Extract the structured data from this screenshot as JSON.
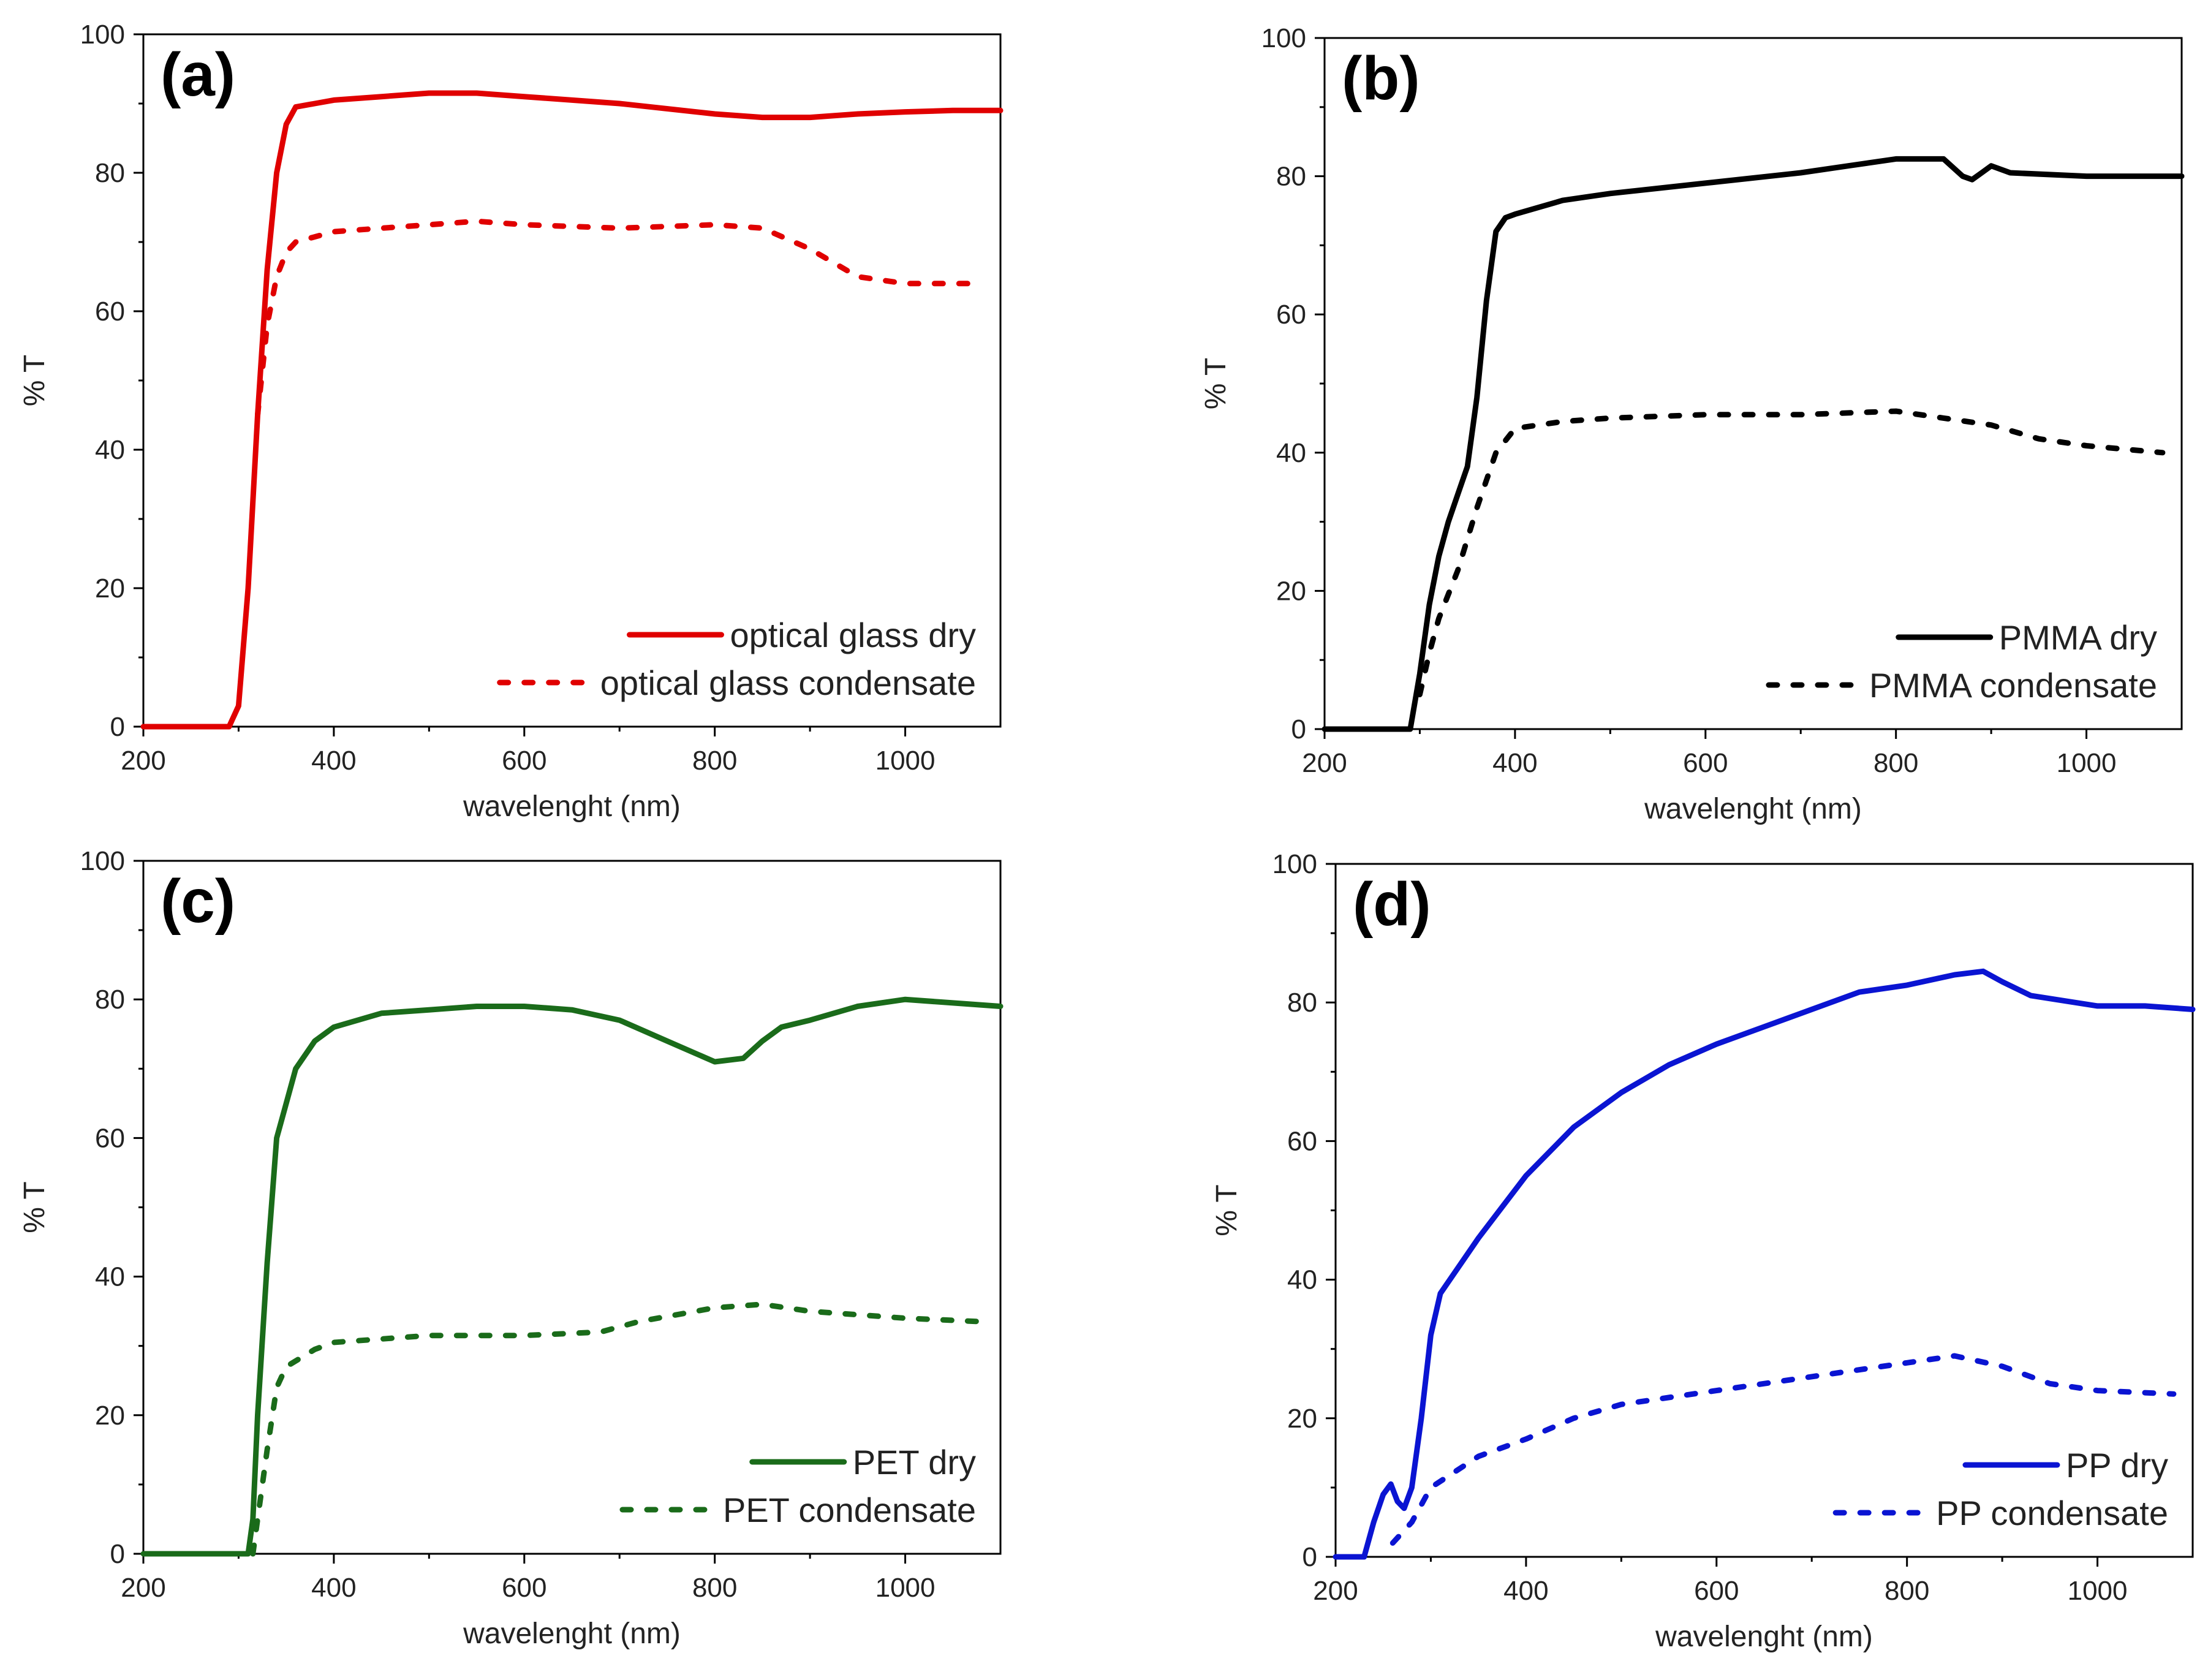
{
  "chart_data": [
    {
      "type": "line",
      "panel_label": "(a)",
      "xlabel": "wavelenght (nm)",
      "ylabel": "% T",
      "xlim": [
        200,
        1100
      ],
      "ylim": [
        0,
        100
      ],
      "xticks": [
        200,
        400,
        600,
        800,
        1000
      ],
      "yticks": [
        0,
        20,
        40,
        60,
        80,
        100
      ],
      "legend_position": "bottom-right",
      "series": [
        {
          "name": "optical glass dry",
          "style": "solid",
          "color": "#e00000",
          "points": [
            [
              200,
              0
            ],
            [
              290,
              0
            ],
            [
              300,
              3
            ],
            [
              310,
              20
            ],
            [
              320,
              45
            ],
            [
              330,
              66
            ],
            [
              340,
              80
            ],
            [
              350,
              87
            ],
            [
              360,
              89.5
            ],
            [
              380,
              90
            ],
            [
              400,
              90.5
            ],
            [
              450,
              91
            ],
            [
              500,
              91.5
            ],
            [
              550,
              91.5
            ],
            [
              600,
              91
            ],
            [
              700,
              90
            ],
            [
              800,
              88.5
            ],
            [
              850,
              88
            ],
            [
              900,
              88
            ],
            [
              950,
              88.5
            ],
            [
              1000,
              88.8
            ],
            [
              1050,
              89
            ],
            [
              1100,
              89
            ]
          ]
        },
        {
          "name": "optical glass condensate",
          "style": "dotted",
          "color": "#e00000",
          "points": [
            [
              320,
              45
            ],
            [
              330,
              58
            ],
            [
              340,
              65
            ],
            [
              350,
              68.5
            ],
            [
              360,
              70
            ],
            [
              400,
              71.5
            ],
            [
              500,
              72.5
            ],
            [
              550,
              73
            ],
            [
              600,
              72.5
            ],
            [
              700,
              72
            ],
            [
              800,
              72.5
            ],
            [
              850,
              72
            ],
            [
              900,
              69
            ],
            [
              950,
              65
            ],
            [
              1000,
              64
            ],
            [
              1070,
              64
            ]
          ]
        }
      ]
    },
    {
      "type": "line",
      "panel_label": "(b)",
      "xlabel": "wavelenght (nm)",
      "ylabel": "% T",
      "xlim": [
        200,
        1100
      ],
      "ylim": [
        0,
        100
      ],
      "xticks": [
        200,
        400,
        600,
        800,
        1000
      ],
      "yticks": [
        0,
        20,
        40,
        60,
        80,
        100
      ],
      "legend_position": "bottom-right",
      "series": [
        {
          "name": "PMMA dry",
          "style": "solid",
          "color": "#000000",
          "points": [
            [
              200,
              0
            ],
            [
              280,
              0
            ],
            [
              290,
              0
            ],
            [
              300,
              8
            ],
            [
              310,
              18
            ],
            [
              320,
              25
            ],
            [
              330,
              30
            ],
            [
              340,
              34
            ],
            [
              350,
              38
            ],
            [
              360,
              48
            ],
            [
              370,
              62
            ],
            [
              380,
              72
            ],
            [
              390,
              74
            ],
            [
              400,
              74.5
            ],
            [
              450,
              76.5
            ],
            [
              500,
              77.5
            ],
            [
              600,
              79
            ],
            [
              700,
              80.5
            ],
            [
              750,
              81.5
            ],
            [
              800,
              82.5
            ],
            [
              850,
              82.5
            ],
            [
              870,
              80
            ],
            [
              880,
              79.5
            ],
            [
              890,
              80.5
            ],
            [
              900,
              81.5
            ],
            [
              920,
              80.5
            ],
            [
              1000,
              80
            ],
            [
              1050,
              80
            ],
            [
              1080,
              80
            ],
            [
              1100,
              80
            ]
          ]
        },
        {
          "name": "PMMA condensate",
          "style": "dotted",
          "color": "#000000",
          "points": [
            [
              300,
              5
            ],
            [
              310,
              11
            ],
            [
              320,
              16
            ],
            [
              340,
              23
            ],
            [
              360,
              32
            ],
            [
              380,
              40
            ],
            [
              400,
              43.5
            ],
            [
              450,
              44.5
            ],
            [
              500,
              45
            ],
            [
              600,
              45.5
            ],
            [
              700,
              45.5
            ],
            [
              800,
              46
            ],
            [
              850,
              45
            ],
            [
              900,
              44
            ],
            [
              950,
              42
            ],
            [
              1000,
              41
            ],
            [
              1080,
              40
            ]
          ]
        }
      ]
    },
    {
      "type": "line",
      "panel_label": "(c)",
      "xlabel": "wavelenght (nm)",
      "ylabel": "% T",
      "xlim": [
        200,
        1100
      ],
      "ylim": [
        0,
        100
      ],
      "xticks": [
        200,
        400,
        600,
        800,
        1000
      ],
      "yticks": [
        0,
        20,
        40,
        60,
        80,
        100
      ],
      "legend_position": "bottom-right",
      "series": [
        {
          "name": "PET dry",
          "style": "solid",
          "color": "#1a6b1a",
          "points": [
            [
              200,
              0
            ],
            [
              300,
              0
            ],
            [
              310,
              0
            ],
            [
              315,
              5
            ],
            [
              320,
              20
            ],
            [
              330,
              42
            ],
            [
              340,
              60
            ],
            [
              350,
              65
            ],
            [
              360,
              70
            ],
            [
              380,
              74
            ],
            [
              400,
              76
            ],
            [
              450,
              78
            ],
            [
              500,
              78.5
            ],
            [
              550,
              79
            ],
            [
              600,
              79
            ],
            [
              650,
              78.5
            ],
            [
              700,
              77
            ],
            [
              750,
              74
            ],
            [
              800,
              71
            ],
            [
              830,
              71.5
            ],
            [
              850,
              74
            ],
            [
              870,
              76
            ],
            [
              900,
              77
            ],
            [
              950,
              79
            ],
            [
              1000,
              80
            ],
            [
              1050,
              79.5
            ],
            [
              1100,
              79
            ]
          ]
        },
        {
          "name": "PET condensate",
          "style": "dotted",
          "color": "#1a6b1a",
          "points": [
            [
              315,
              0
            ],
            [
              320,
              5
            ],
            [
              330,
              15
            ],
            [
              340,
              24
            ],
            [
              350,
              27
            ],
            [
              380,
              29.5
            ],
            [
              400,
              30.5
            ],
            [
              450,
              31
            ],
            [
              500,
              31.5
            ],
            [
              600,
              31.5
            ],
            [
              680,
              32
            ],
            [
              720,
              33.5
            ],
            [
              800,
              35.5
            ],
            [
              850,
              36
            ],
            [
              900,
              35
            ],
            [
              1000,
              34
            ],
            [
              1080,
              33.5
            ]
          ]
        }
      ]
    },
    {
      "type": "line",
      "panel_label": "(d)",
      "xlabel": "wavelenght (nm)",
      "ylabel": "% T",
      "xlim": [
        200,
        1100
      ],
      "ylim": [
        0,
        100
      ],
      "xticks": [
        200,
        400,
        600,
        800,
        1000
      ],
      "yticks": [
        0,
        20,
        40,
        60,
        80,
        100
      ],
      "legend_position": "bottom-right",
      "series": [
        {
          "name": "PP dry",
          "style": "solid",
          "color": "#0a14d2",
          "points": [
            [
              200,
              0
            ],
            [
              230,
              0
            ],
            [
              240,
              5
            ],
            [
              250,
              9
            ],
            [
              258,
              10.5
            ],
            [
              265,
              8
            ],
            [
              272,
              7
            ],
            [
              280,
              10
            ],
            [
              290,
              20
            ],
            [
              300,
              32
            ],
            [
              310,
              38
            ],
            [
              350,
              46
            ],
            [
              400,
              55
            ],
            [
              450,
              62
            ],
            [
              500,
              67
            ],
            [
              550,
              71
            ],
            [
              600,
              74
            ],
            [
              650,
              76.5
            ],
            [
              700,
              79
            ],
            [
              750,
              81.5
            ],
            [
              800,
              82.5
            ],
            [
              850,
              84
            ],
            [
              880,
              84.5
            ],
            [
              900,
              83
            ],
            [
              930,
              81
            ],
            [
              1000,
              79.5
            ],
            [
              1050,
              79.5
            ],
            [
              1100,
              79
            ]
          ]
        },
        {
          "name": "PP condensate",
          "style": "dotted",
          "color": "#0a14d2",
          "points": [
            [
              260,
              2
            ],
            [
              280,
              5
            ],
            [
              300,
              10
            ],
            [
              350,
              14.5
            ],
            [
              400,
              17
            ],
            [
              450,
              20
            ],
            [
              500,
              22
            ],
            [
              600,
              24
            ],
            [
              700,
              26
            ],
            [
              800,
              28
            ],
            [
              850,
              29
            ],
            [
              900,
              27.5
            ],
            [
              950,
              25
            ],
            [
              1000,
              24
            ],
            [
              1080,
              23.5
            ]
          ]
        }
      ]
    }
  ]
}
